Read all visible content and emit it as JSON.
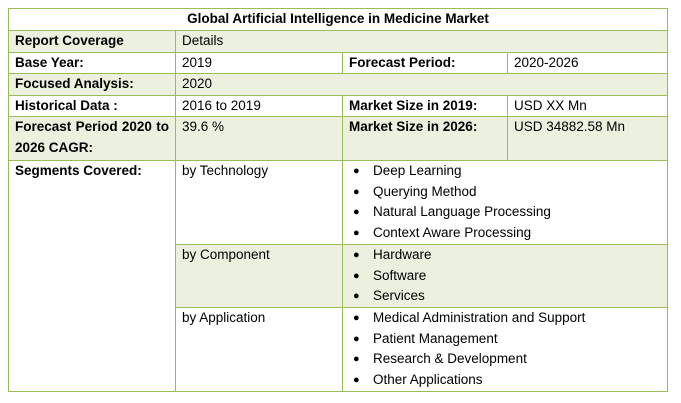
{
  "title": "Global Artificial Intelligence in Medicine Market",
  "coverage": {
    "label": "Report Coverage",
    "value": "Details"
  },
  "base_year": {
    "label": "Base Year:",
    "value": "2019"
  },
  "forecast_period": {
    "label": "Forecast Period:",
    "value": "2020-2026"
  },
  "focused_analysis": {
    "label": "Focused Analysis:",
    "value": "2020"
  },
  "historical": {
    "label": "Historical Data :",
    "value": "2016 to 2019"
  },
  "size_2019": {
    "label": "Market Size in 2019:",
    "value": "USD XX Mn"
  },
  "cagr": {
    "label": "Forecast Period 2020 to 2026 CAGR:",
    "value": "39.6 %"
  },
  "size_2026": {
    "label": "Market Size in 2026:",
    "value": "USD 34882.58 Mn"
  },
  "segments": {
    "label": "Segments Covered:",
    "bullet": "●",
    "groups": [
      {
        "name": "by Technology",
        "items": [
          "Deep Learning",
          "Querying Method",
          "Natural Language Processing",
          "Context Aware Processing"
        ]
      },
      {
        "name": "by Component",
        "items": [
          "Hardware",
          "Software",
          "Services"
        ]
      },
      {
        "name": "by Application",
        "items": [
          "Medical Administration and Support",
          "Patient Management",
          "Research & Development",
          "Other Applications"
        ]
      }
    ]
  },
  "colors": {
    "border": "#9bbb59",
    "shade": "#ebf1de"
  }
}
